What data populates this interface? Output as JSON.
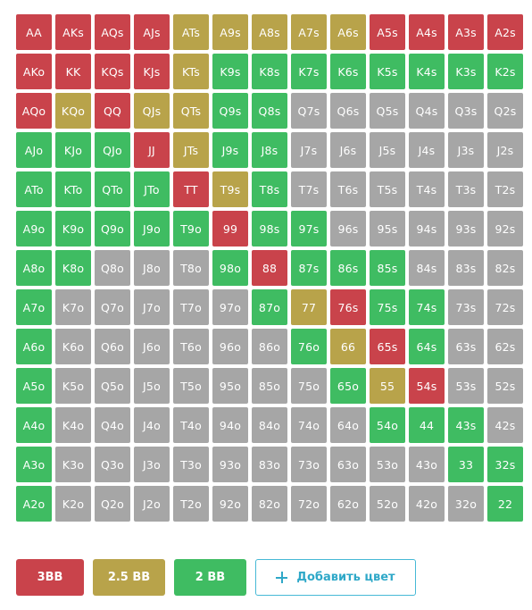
{
  "colors": {
    "red": "#c9434b",
    "gold": "#b8a34a",
    "green": "#3fbc62",
    "gray": "#a6a6a6"
  },
  "grid": {
    "rows": [
      [
        [
          "AA",
          "red"
        ],
        [
          "AKs",
          "red"
        ],
        [
          "AQs",
          "red"
        ],
        [
          "AJs",
          "red"
        ],
        [
          "ATs",
          "gold"
        ],
        [
          "A9s",
          "gold"
        ],
        [
          "A8s",
          "gold"
        ],
        [
          "A7s",
          "gold"
        ],
        [
          "A6s",
          "gold"
        ],
        [
          "A5s",
          "red"
        ],
        [
          "A4s",
          "red"
        ],
        [
          "A3s",
          "red"
        ],
        [
          "A2s",
          "red"
        ]
      ],
      [
        [
          "AKo",
          "red"
        ],
        [
          "KK",
          "red"
        ],
        [
          "KQs",
          "red"
        ],
        [
          "KJs",
          "red"
        ],
        [
          "KTs",
          "gold"
        ],
        [
          "K9s",
          "green"
        ],
        [
          "K8s",
          "green"
        ],
        [
          "K7s",
          "green"
        ],
        [
          "K6s",
          "green"
        ],
        [
          "K5s",
          "green"
        ],
        [
          "K4s",
          "green"
        ],
        [
          "K3s",
          "green"
        ],
        [
          "K2s",
          "green"
        ]
      ],
      [
        [
          "AQo",
          "red"
        ],
        [
          "KQo",
          "gold"
        ],
        [
          "QQ",
          "red"
        ],
        [
          "QJs",
          "gold"
        ],
        [
          "QTs",
          "gold"
        ],
        [
          "Q9s",
          "green"
        ],
        [
          "Q8s",
          "green"
        ],
        [
          "Q7s",
          "gray"
        ],
        [
          "Q6s",
          "gray"
        ],
        [
          "Q5s",
          "gray"
        ],
        [
          "Q4s",
          "gray"
        ],
        [
          "Q3s",
          "gray"
        ],
        [
          "Q2s",
          "gray"
        ]
      ],
      [
        [
          "AJo",
          "green"
        ],
        [
          "KJo",
          "green"
        ],
        [
          "QJo",
          "green"
        ],
        [
          "JJ",
          "red"
        ],
        [
          "JTs",
          "gold"
        ],
        [
          "J9s",
          "green"
        ],
        [
          "J8s",
          "green"
        ],
        [
          "J7s",
          "gray"
        ],
        [
          "J6s",
          "gray"
        ],
        [
          "J5s",
          "gray"
        ],
        [
          "J4s",
          "gray"
        ],
        [
          "J3s",
          "gray"
        ],
        [
          "J2s",
          "gray"
        ]
      ],
      [
        [
          "ATo",
          "green"
        ],
        [
          "KTo",
          "green"
        ],
        [
          "QTo",
          "green"
        ],
        [
          "JTo",
          "green"
        ],
        [
          "TT",
          "red"
        ],
        [
          "T9s",
          "gold"
        ],
        [
          "T8s",
          "green"
        ],
        [
          "T7s",
          "gray"
        ],
        [
          "T6s",
          "gray"
        ],
        [
          "T5s",
          "gray"
        ],
        [
          "T4s",
          "gray"
        ],
        [
          "T3s",
          "gray"
        ],
        [
          "T2s",
          "gray"
        ]
      ],
      [
        [
          "A9o",
          "green"
        ],
        [
          "K9o",
          "green"
        ],
        [
          "Q9o",
          "green"
        ],
        [
          "J9o",
          "green"
        ],
        [
          "T9o",
          "green"
        ],
        [
          "99",
          "red"
        ],
        [
          "98s",
          "green"
        ],
        [
          "97s",
          "green"
        ],
        [
          "96s",
          "gray"
        ],
        [
          "95s",
          "gray"
        ],
        [
          "94s",
          "gray"
        ],
        [
          "93s",
          "gray"
        ],
        [
          "92s",
          "gray"
        ]
      ],
      [
        [
          "A8o",
          "green"
        ],
        [
          "K8o",
          "green"
        ],
        [
          "Q8o",
          "gray"
        ],
        [
          "J8o",
          "gray"
        ],
        [
          "T8o",
          "gray"
        ],
        [
          "98o",
          "green"
        ],
        [
          "88",
          "red"
        ],
        [
          "87s",
          "green"
        ],
        [
          "86s",
          "green"
        ],
        [
          "85s",
          "green"
        ],
        [
          "84s",
          "gray"
        ],
        [
          "83s",
          "gray"
        ],
        [
          "82s",
          "gray"
        ]
      ],
      [
        [
          "A7o",
          "green"
        ],
        [
          "K7o",
          "gray"
        ],
        [
          "Q7o",
          "gray"
        ],
        [
          "J7o",
          "gray"
        ],
        [
          "T7o",
          "gray"
        ],
        [
          "97o",
          "gray"
        ],
        [
          "87o",
          "green"
        ],
        [
          "77",
          "gold"
        ],
        [
          "76s",
          "red"
        ],
        [
          "75s",
          "green"
        ],
        [
          "74s",
          "green"
        ],
        [
          "73s",
          "gray"
        ],
        [
          "72s",
          "gray"
        ]
      ],
      [
        [
          "A6o",
          "green"
        ],
        [
          "K6o",
          "gray"
        ],
        [
          "Q6o",
          "gray"
        ],
        [
          "J6o",
          "gray"
        ],
        [
          "T6o",
          "gray"
        ],
        [
          "96o",
          "gray"
        ],
        [
          "86o",
          "gray"
        ],
        [
          "76o",
          "green"
        ],
        [
          "66",
          "gold"
        ],
        [
          "65s",
          "red"
        ],
        [
          "64s",
          "green"
        ],
        [
          "63s",
          "gray"
        ],
        [
          "62s",
          "gray"
        ]
      ],
      [
        [
          "A5o",
          "green"
        ],
        [
          "K5o",
          "gray"
        ],
        [
          "Q5o",
          "gray"
        ],
        [
          "J5o",
          "gray"
        ],
        [
          "T5o",
          "gray"
        ],
        [
          "95o",
          "gray"
        ],
        [
          "85o",
          "gray"
        ],
        [
          "75o",
          "gray"
        ],
        [
          "65o",
          "green"
        ],
        [
          "55",
          "gold"
        ],
        [
          "54s",
          "red"
        ],
        [
          "53s",
          "gray"
        ],
        [
          "52s",
          "gray"
        ]
      ],
      [
        [
          "A4o",
          "green"
        ],
        [
          "K4o",
          "gray"
        ],
        [
          "Q4o",
          "gray"
        ],
        [
          "J4o",
          "gray"
        ],
        [
          "T4o",
          "gray"
        ],
        [
          "94o",
          "gray"
        ],
        [
          "84o",
          "gray"
        ],
        [
          "74o",
          "gray"
        ],
        [
          "64o",
          "gray"
        ],
        [
          "54o",
          "green"
        ],
        [
          "44",
          "green"
        ],
        [
          "43s",
          "green"
        ],
        [
          "42s",
          "gray"
        ]
      ],
      [
        [
          "A3o",
          "green"
        ],
        [
          "K3o",
          "gray"
        ],
        [
          "Q3o",
          "gray"
        ],
        [
          "J3o",
          "gray"
        ],
        [
          "T3o",
          "gray"
        ],
        [
          "93o",
          "gray"
        ],
        [
          "83o",
          "gray"
        ],
        [
          "73o",
          "gray"
        ],
        [
          "63o",
          "gray"
        ],
        [
          "53o",
          "gray"
        ],
        [
          "43o",
          "gray"
        ],
        [
          "33",
          "green"
        ],
        [
          "32s",
          "green"
        ]
      ],
      [
        [
          "A2o",
          "green"
        ],
        [
          "K2o",
          "gray"
        ],
        [
          "Q2o",
          "gray"
        ],
        [
          "J2o",
          "gray"
        ],
        [
          "T2o",
          "gray"
        ],
        [
          "92o",
          "gray"
        ],
        [
          "82o",
          "gray"
        ],
        [
          "72o",
          "gray"
        ],
        [
          "62o",
          "gray"
        ],
        [
          "52o",
          "gray"
        ],
        [
          "42o",
          "gray"
        ],
        [
          "32o",
          "gray"
        ],
        [
          "22",
          "green"
        ]
      ]
    ]
  },
  "legend": {
    "items": [
      {
        "label": "3BB",
        "color": "red"
      },
      {
        "label": "2.5 BB",
        "color": "gold"
      },
      {
        "label": "2 BB",
        "color": "green"
      }
    ],
    "add_label": "Добавить цвет",
    "add_icon": "plus-icon"
  }
}
